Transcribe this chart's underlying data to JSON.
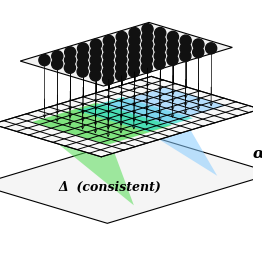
{
  "bg_color": "#ffffff",
  "dot_color": "#111111",
  "green_color": "#55dd55",
  "cyan_color": "#33ddcc",
  "blue_color": "#88ccff",
  "green_alpha": 0.75,
  "cyan_alpha": 0.7,
  "blue_alpha": 0.6,
  "label_alpha": "α",
  "label_delta": "Δ  (consistent)",
  "figsize": [
    2.62,
    2.6
  ],
  "dpi": 100,
  "proj_sx": 0.3,
  "proj_sy": 0.09,
  "proj_sz": 0.38
}
